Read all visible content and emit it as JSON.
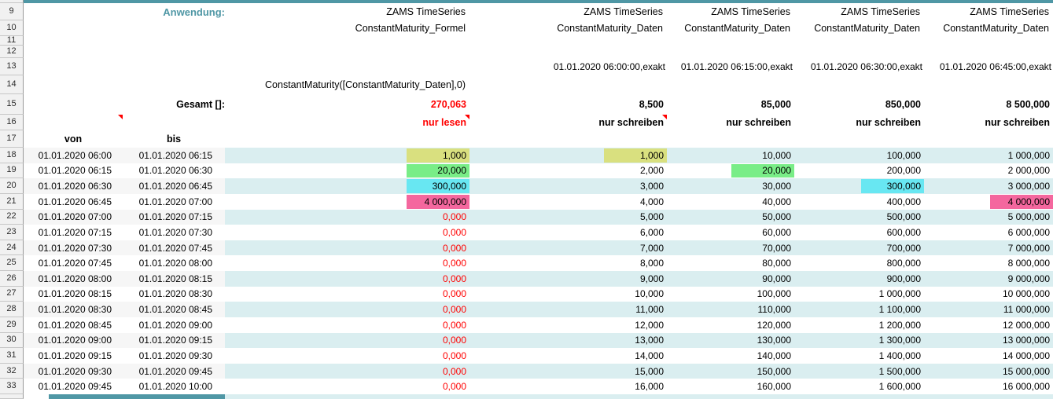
{
  "sheet": {
    "anwendung_label": "Anwendung:",
    "gesamt_label": "Gesamt []:",
    "von_label": "von",
    "bis_label": "bis",
    "row_numbers_top": [
      "9",
      "10",
      "11",
      "12",
      "13",
      "14",
      "15",
      "16",
      "17"
    ],
    "columns": [
      {
        "app_line1": "ZAMS TimeSeries",
        "app_line2": "ConstantMaturity_Formel",
        "timestamp": "",
        "formula": "ConstantMaturity([ConstantMaturity_Daten],0)",
        "total": "270,063",
        "mode": "nur lesen"
      },
      {
        "app_line1": "ZAMS TimeSeries",
        "app_line2": "ConstantMaturity_Daten",
        "timestamp": "01.01.2020 06:00:00,exakt",
        "formula": "",
        "total": "8,500",
        "mode": "nur schreiben"
      },
      {
        "app_line1": "ZAMS TimeSeries",
        "app_line2": "ConstantMaturity_Daten",
        "timestamp": "01.01.2020 06:15:00,exakt",
        "formula": "",
        "total": "85,000",
        "mode": "nur schreiben"
      },
      {
        "app_line1": "ZAMS TimeSeries",
        "app_line2": "ConstantMaturity_Daten",
        "timestamp": "01.01.2020 06:30:00,exakt",
        "formula": "",
        "total": "850,000",
        "mode": "nur schreiben"
      },
      {
        "app_line1": "ZAMS TimeSeries",
        "app_line2": "ConstantMaturity_Daten",
        "timestamp": "01.01.2020 06:45:00,exakt",
        "formula": "",
        "total": "8 500,000",
        "mode": "nur schreiben"
      }
    ],
    "rows": [
      {
        "num": "18",
        "von": "01.01.2020 06:00",
        "bis": "01.01.2020 06:15",
        "values": [
          "1,000",
          "1,000",
          "10,000",
          "100,000",
          "1 000,000"
        ],
        "cls": [
          "vi hl-yellow",
          "vi hl-yellow",
          "vi",
          "vi",
          "vi"
        ]
      },
      {
        "num": "19",
        "von": "01.01.2020 06:15",
        "bis": "01.01.2020 06:30",
        "values": [
          "20,000",
          "2,000",
          "20,000",
          "200,000",
          "2 000,000"
        ],
        "cls": [
          "vi hl-green",
          "vi",
          "vi hl-green",
          "vi",
          "vi"
        ]
      },
      {
        "num": "20",
        "von": "01.01.2020 06:30",
        "bis": "01.01.2020 06:45",
        "values": [
          "300,000",
          "3,000",
          "30,000",
          "300,000",
          "3 000,000"
        ],
        "cls": [
          "vi hl-cyan",
          "vi",
          "vi",
          "vi hl-cyan",
          "vi"
        ]
      },
      {
        "num": "21",
        "von": "01.01.2020 06:45",
        "bis": "01.01.2020 07:00",
        "values": [
          "4 000,000",
          "4,000",
          "40,000",
          "400,000",
          "4 000,000"
        ],
        "cls": [
          "vi hl-pink",
          "vi",
          "vi",
          "vi",
          "vi hl-pink"
        ]
      },
      {
        "num": "22",
        "von": "01.01.2020 07:00",
        "bis": "01.01.2020 07:15",
        "values": [
          "0,000",
          "5,000",
          "50,000",
          "500,000",
          "5 000,000"
        ],
        "cls": [
          "vi red",
          "vi",
          "vi",
          "vi",
          "vi"
        ]
      },
      {
        "num": "23",
        "von": "01.01.2020 07:15",
        "bis": "01.01.2020 07:30",
        "values": [
          "0,000",
          "6,000",
          "60,000",
          "600,000",
          "6 000,000"
        ],
        "cls": [
          "vi red",
          "vi",
          "vi",
          "vi",
          "vi"
        ]
      },
      {
        "num": "24",
        "von": "01.01.2020 07:30",
        "bis": "01.01.2020 07:45",
        "values": [
          "0,000",
          "7,000",
          "70,000",
          "700,000",
          "7 000,000"
        ],
        "cls": [
          "vi red",
          "vi",
          "vi",
          "vi",
          "vi"
        ]
      },
      {
        "num": "25",
        "von": "01.01.2020 07:45",
        "bis": "01.01.2020 08:00",
        "values": [
          "0,000",
          "8,000",
          "80,000",
          "800,000",
          "8 000,000"
        ],
        "cls": [
          "vi red",
          "vi",
          "vi",
          "vi",
          "vi"
        ]
      },
      {
        "num": "26",
        "von": "01.01.2020 08:00",
        "bis": "01.01.2020 08:15",
        "values": [
          "0,000",
          "9,000",
          "90,000",
          "900,000",
          "9 000,000"
        ],
        "cls": [
          "vi red",
          "vi",
          "vi",
          "vi",
          "vi"
        ]
      },
      {
        "num": "27",
        "von": "01.01.2020 08:15",
        "bis": "01.01.2020 08:30",
        "values": [
          "0,000",
          "10,000",
          "100,000",
          "1 000,000",
          "10 000,000"
        ],
        "cls": [
          "vi red",
          "vi",
          "vi",
          "vi",
          "vi"
        ]
      },
      {
        "num": "28",
        "von": "01.01.2020 08:30",
        "bis": "01.01.2020 08:45",
        "values": [
          "0,000",
          "11,000",
          "110,000",
          "1 100,000",
          "11 000,000"
        ],
        "cls": [
          "vi red",
          "vi",
          "vi",
          "vi",
          "vi"
        ]
      },
      {
        "num": "29",
        "von": "01.01.2020 08:45",
        "bis": "01.01.2020 09:00",
        "values": [
          "0,000",
          "12,000",
          "120,000",
          "1 200,000",
          "12 000,000"
        ],
        "cls": [
          "vi red",
          "vi",
          "vi",
          "vi",
          "vi"
        ]
      },
      {
        "num": "30",
        "von": "01.01.2020 09:00",
        "bis": "01.01.2020 09:15",
        "values": [
          "0,000",
          "13,000",
          "130,000",
          "1 300,000",
          "13 000,000"
        ],
        "cls": [
          "vi red",
          "vi",
          "vi",
          "vi",
          "vi"
        ]
      },
      {
        "num": "31",
        "von": "01.01.2020 09:15",
        "bis": "01.01.2020 09:30",
        "values": [
          "0,000",
          "14,000",
          "140,000",
          "1 400,000",
          "14 000,000"
        ],
        "cls": [
          "vi red",
          "vi",
          "vi",
          "vi",
          "vi"
        ]
      },
      {
        "num": "32",
        "von": "01.01.2020 09:30",
        "bis": "01.01.2020 09:45",
        "values": [
          "0,000",
          "15,000",
          "150,000",
          "1 500,000",
          "15 000,000"
        ],
        "cls": [
          "vi red",
          "vi",
          "vi",
          "vi",
          "vi"
        ]
      },
      {
        "num": "33",
        "von": "01.01.2020 09:45",
        "bis": "01.01.2020 10:00",
        "values": [
          "0,000",
          "16,000",
          "160,000",
          "1 600,000",
          "16 000,000"
        ],
        "cls": [
          "vi red",
          "vi",
          "vi",
          "vi",
          "vi"
        ]
      }
    ],
    "colors": {
      "accent_teal": "#4f97a5",
      "band_teal": "#daeef0",
      "row_stripe": "#f6f6f6",
      "highlight_yellow": "#d9e07f",
      "highlight_green": "#79ed87",
      "highlight_cyan": "#68e7f2",
      "highlight_pink": "#f4679e",
      "alert_red": "#ff0000"
    }
  }
}
